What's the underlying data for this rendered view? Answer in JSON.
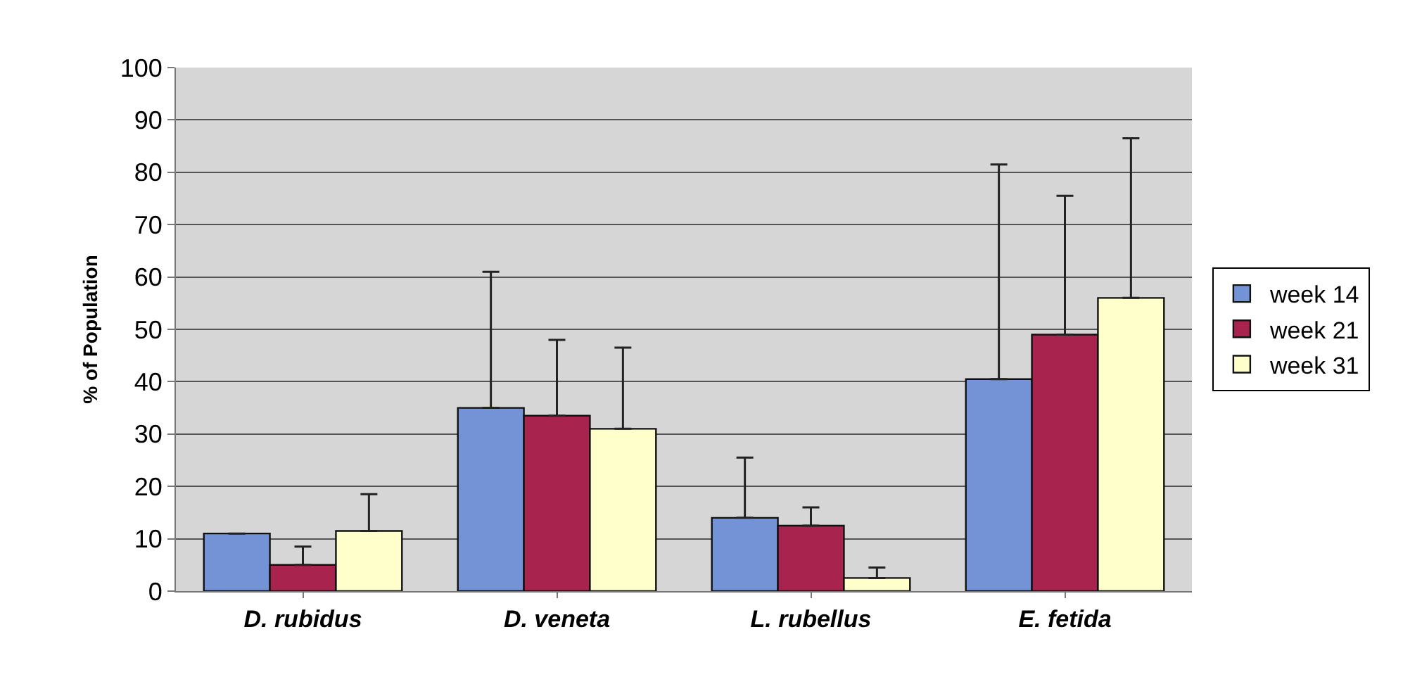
{
  "chart_data": {
    "type": "bar",
    "ylabel": "% of Population",
    "categories": [
      "D. rubidus",
      "D. veneta",
      "L. rubellus",
      "E. fetida"
    ],
    "series": [
      {
        "name": "week 14",
        "color": "#7393d6",
        "values": [
          11,
          35,
          14,
          40.5
        ],
        "errors": [
          null,
          [
            35,
            61
          ],
          [
            14,
            25.5
          ],
          [
            40.5,
            81.5
          ]
        ]
      },
      {
        "name": "week 21",
        "color": "#a8234d",
        "values": [
          5,
          33.5,
          12.5,
          49
        ],
        "errors": [
          [
            5,
            8.5
          ],
          [
            33.5,
            48
          ],
          [
            12.5,
            16
          ],
          [
            49,
            75.5
          ]
        ]
      },
      {
        "name": "week 31",
        "color": "#ffffcc",
        "values": [
          11.5,
          31,
          2.5,
          56
        ],
        "errors": [
          [
            11.5,
            18.5
          ],
          [
            31,
            46.5
          ],
          [
            2.5,
            4.5
          ],
          [
            56,
            86.5
          ]
        ]
      }
    ],
    "ylim": [
      0,
      100
    ],
    "yticks": [
      0,
      10,
      20,
      30,
      40,
      50,
      60,
      70,
      80,
      90,
      100
    ],
    "grid": "y",
    "legend": "right"
  }
}
